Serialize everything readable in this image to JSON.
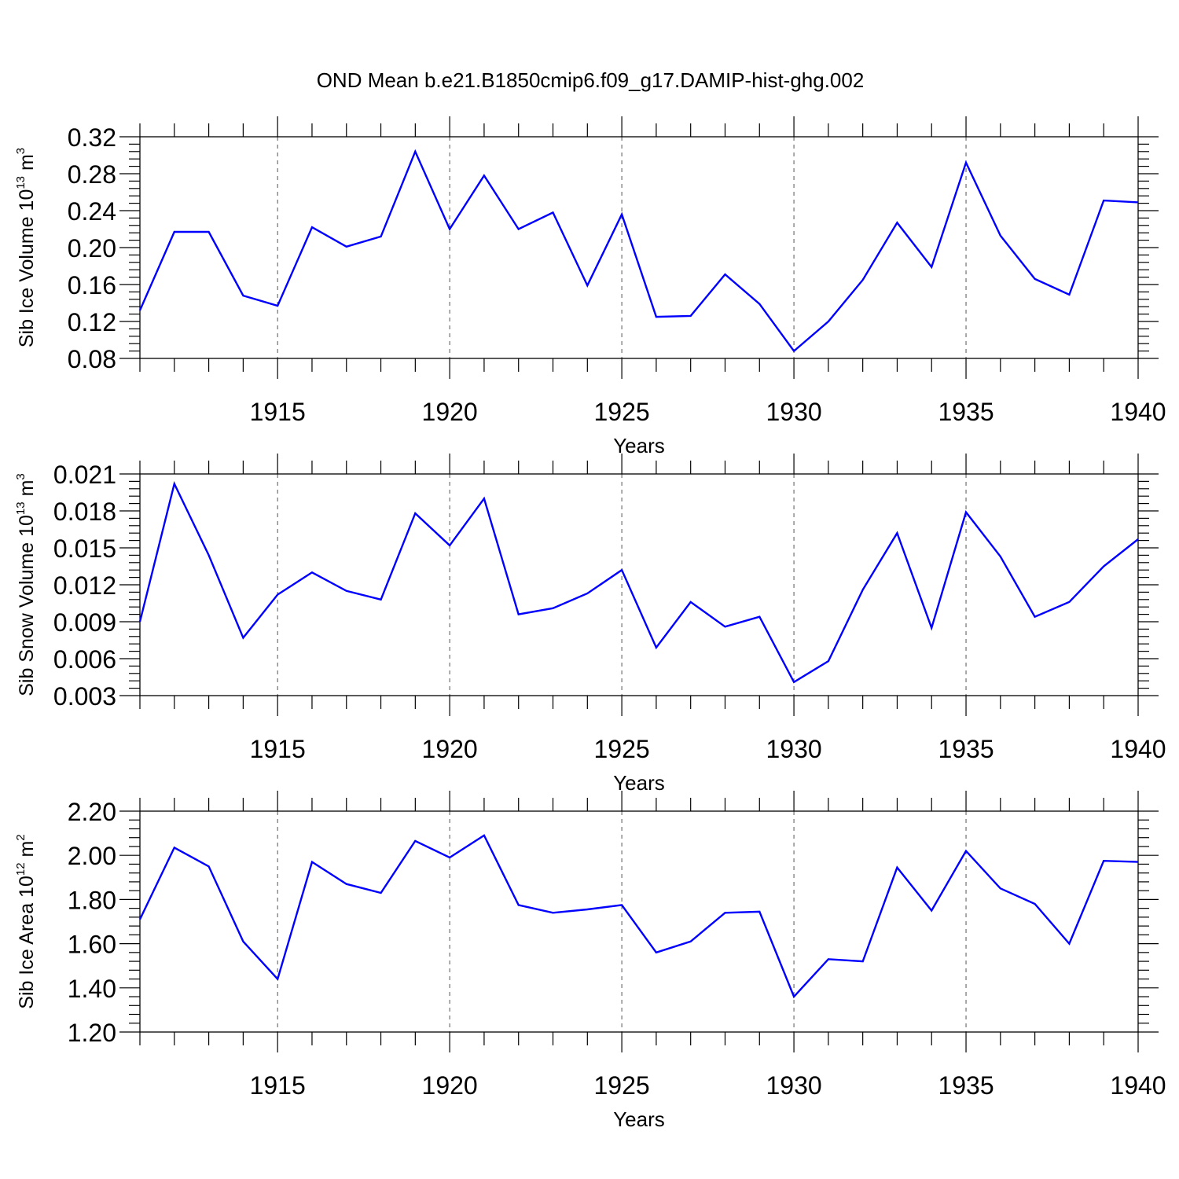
{
  "title": "OND Mean b.e21.B1850cmip6.f09_g17.DAMIP-hist-ghg.002",
  "colors": {
    "series": "#0000ff",
    "axes": "#000000",
    "grid": "#555555"
  },
  "chart_data": [
    {
      "type": "line",
      "ylabel": {
        "main": "Sib Ice Volume 10",
        "exp": "13",
        "unit": " m",
        "unit_exp": "3"
      },
      "xlabel": "Years",
      "xlim": [
        1911,
        1940
      ],
      "xticks": [
        "1915",
        "1920",
        "1925",
        "1930",
        "1935",
        "1940"
      ],
      "ylim": [
        0.08,
        0.32
      ],
      "yticks": [
        "0.08",
        "0.12",
        "0.16",
        "0.20",
        "0.24",
        "0.28",
        "0.32"
      ],
      "grid": "x-major-dashed",
      "series": [
        {
          "name": "Sib Ice Volume",
          "x": [
            1911,
            1912,
            1913,
            1914,
            1915,
            1916,
            1917,
            1918,
            1919,
            1920,
            1921,
            1922,
            1923,
            1924,
            1925,
            1926,
            1927,
            1928,
            1929,
            1930,
            1931,
            1932,
            1933,
            1934,
            1935,
            1936,
            1937,
            1938,
            1939,
            1940
          ],
          "values": [
            0.132,
            0.217,
            0.217,
            0.148,
            0.137,
            0.222,
            0.201,
            0.212,
            0.304,
            0.22,
            0.278,
            0.22,
            0.238,
            0.159,
            0.236,
            0.125,
            0.126,
            0.171,
            0.139,
            0.088,
            0.12,
            0.165,
            0.227,
            0.179,
            0.292,
            0.213,
            0.166,
            0.149,
            0.251,
            0.249
          ]
        }
      ]
    },
    {
      "type": "line",
      "ylabel": {
        "main": "Sib Snow Volume 10",
        "exp": "13",
        "unit": " m",
        "unit_exp": "3"
      },
      "xlabel": "Years",
      "xlim": [
        1911,
        1940
      ],
      "xticks": [
        "1915",
        "1920",
        "1925",
        "1930",
        "1935",
        "1940"
      ],
      "ylim": [
        0.003,
        0.021
      ],
      "yticks": [
        "0.003",
        "0.006",
        "0.009",
        "0.012",
        "0.015",
        "0.018",
        "0.021"
      ],
      "grid": "x-major-dashed",
      "series": [
        {
          "name": "Sib Snow Volume",
          "x": [
            1911,
            1912,
            1913,
            1914,
            1915,
            1916,
            1917,
            1918,
            1919,
            1920,
            1921,
            1922,
            1923,
            1924,
            1925,
            1926,
            1927,
            1928,
            1929,
            1930,
            1931,
            1932,
            1933,
            1934,
            1935,
            1936,
            1937,
            1938,
            1939,
            1940
          ],
          "values": [
            0.009,
            0.0202,
            0.0144,
            0.0077,
            0.0112,
            0.013,
            0.0115,
            0.0108,
            0.0178,
            0.0152,
            0.019,
            0.0096,
            0.0101,
            0.0113,
            0.0132,
            0.0069,
            0.0106,
            0.0086,
            0.0094,
            0.0041,
            0.0058,
            0.0116,
            0.0162,
            0.0085,
            0.0179,
            0.0143,
            0.0094,
            0.0106,
            0.0135,
            0.0157
          ]
        }
      ]
    },
    {
      "type": "line",
      "ylabel": {
        "main": "Sib Ice Area 10",
        "exp": "12",
        "unit": " m",
        "unit_exp": "2"
      },
      "xlabel": "Years",
      "xlim": [
        1911,
        1940
      ],
      "xticks": [
        "1915",
        "1920",
        "1925",
        "1930",
        "1935",
        "1940"
      ],
      "ylim": [
        1.2,
        2.2
      ],
      "yticks": [
        "1.20",
        "1.40",
        "1.60",
        "1.80",
        "2.00",
        "2.20"
      ],
      "grid": "x-major-dashed",
      "series": [
        {
          "name": "Sib Ice Area",
          "x": [
            1911,
            1912,
            1913,
            1914,
            1915,
            1916,
            1917,
            1918,
            1919,
            1920,
            1921,
            1922,
            1923,
            1924,
            1925,
            1926,
            1927,
            1928,
            1929,
            1930,
            1931,
            1932,
            1933,
            1934,
            1935,
            1936,
            1937,
            1938,
            1939,
            1940
          ],
          "values": [
            1.71,
            2.035,
            1.95,
            1.61,
            1.44,
            1.97,
            1.87,
            1.83,
            2.065,
            1.99,
            2.09,
            1.775,
            1.74,
            1.755,
            1.775,
            1.56,
            1.61,
            1.74,
            1.745,
            1.36,
            1.53,
            1.52,
            1.945,
            1.75,
            2.02,
            1.85,
            1.78,
            1.6,
            1.975,
            1.97
          ]
        }
      ]
    }
  ]
}
